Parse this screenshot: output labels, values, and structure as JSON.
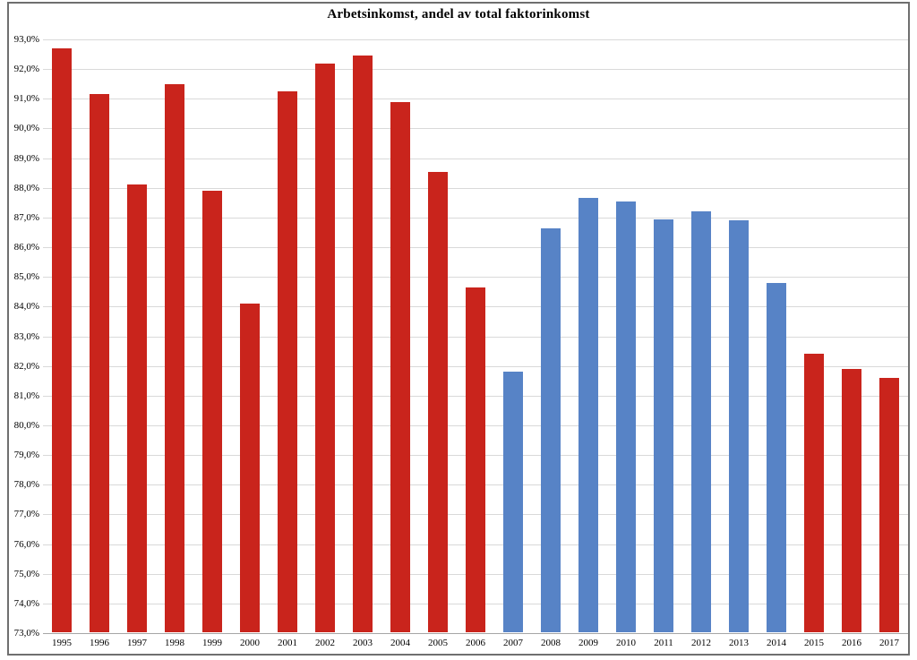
{
  "chart_data": {
    "type": "bar",
    "title": "Arbetsinkomst, andel av total faktorinkomst",
    "xlabel": "",
    "ylabel": "",
    "ylim": [
      73.0,
      93.0
    ],
    "ytick_step": 1.0,
    "grid": true,
    "legend_position": "none",
    "ytick_labels": [
      "93,0%",
      "92,0%",
      "91,0%",
      "90,0%",
      "89,0%",
      "88,0%",
      "87,0%",
      "86,0%",
      "85,0%",
      "84,0%",
      "83,0%",
      "82,0%",
      "81,0%",
      "80,0%",
      "79,0%",
      "78,0%",
      "77,0%",
      "76,0%",
      "75,0%",
      "74,0%",
      "73,0%"
    ],
    "categories": [
      "1995",
      "1996",
      "1997",
      "1998",
      "1999",
      "2000",
      "2001",
      "2002",
      "2003",
      "2004",
      "2005",
      "2006",
      "2007",
      "2008",
      "2009",
      "2010",
      "2011",
      "2012",
      "2013",
      "2014",
      "2015",
      "2016",
      "2017"
    ],
    "values": [
      92.7,
      91.15,
      88.1,
      91.5,
      87.9,
      84.1,
      91.25,
      92.2,
      92.45,
      90.9,
      88.55,
      84.65,
      81.8,
      86.65,
      87.65,
      87.55,
      86.95,
      87.2,
      86.9,
      84.8,
      82.4,
      81.9,
      81.6
    ],
    "colors": [
      "#c9241c",
      "#c9241c",
      "#c9241c",
      "#c9241c",
      "#c9241c",
      "#c9241c",
      "#c9241c",
      "#c9241c",
      "#c9241c",
      "#c9241c",
      "#c9241c",
      "#c9241c",
      "#5783c6",
      "#5783c6",
      "#5783c6",
      "#5783c6",
      "#5783c6",
      "#5783c6",
      "#5783c6",
      "#5783c6",
      "#c9241c",
      "#c9241c",
      "#c9241c"
    ],
    "series_colors": {
      "red": "#c9241c",
      "blue": "#5783c6"
    },
    "gridline_color": "#d9d9d9",
    "axisline_color": "#a6a6a6"
  }
}
